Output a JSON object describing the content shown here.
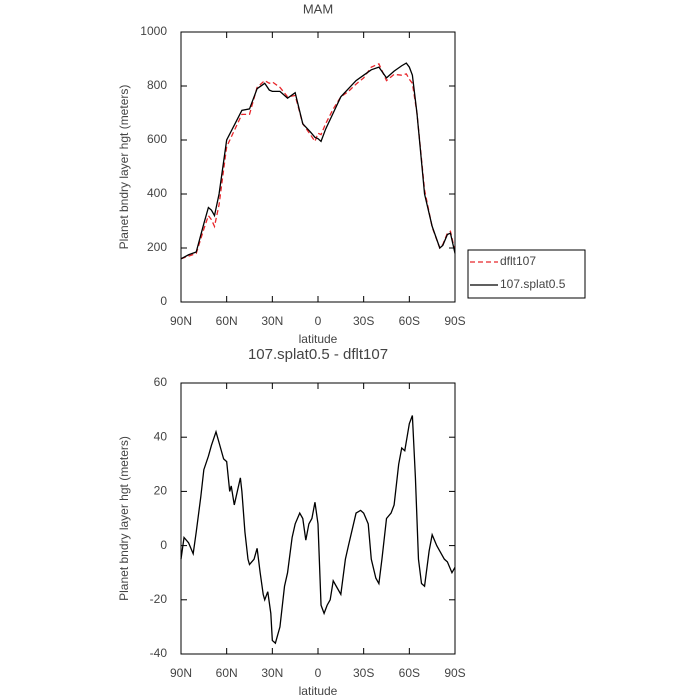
{
  "chart_data": [
    {
      "type": "line",
      "title": "MAM",
      "x_label": "latitude",
      "y_label": "Planet bndry layer hgt (meters)",
      "x": [
        90,
        85,
        80,
        75,
        72,
        70,
        68,
        65,
        62,
        60,
        55,
        50,
        45,
        40,
        35,
        32,
        30,
        25,
        20,
        15,
        10,
        5,
        2,
        0,
        -2,
        -5,
        -10,
        -15,
        -20,
        -25,
        -30,
        -35,
        -40,
        -45,
        -50,
        -55,
        -58,
        -60,
        -62,
        -65,
        -70,
        -75,
        -80,
        -82,
        -85,
        -87,
        -90
      ],
      "series": [
        {
          "name": "dflt107",
          "color": "#e8262b",
          "linestyle": "dashed",
          "values": [
            160,
            170,
            180,
            270,
            320,
            305,
            280,
            360,
            490,
            575,
            635,
            695,
            695,
            795,
            820,
            810,
            815,
            795,
            760,
            765,
            660,
            620,
            595,
            625,
            620,
            660,
            715,
            760,
            780,
            807,
            830,
            870,
            882,
            820,
            843,
            840,
            845,
            825,
            810,
            700,
            415,
            277,
            200,
            213,
            255,
            262,
            188
          ]
        },
        {
          "name": "107.splat0.5",
          "color": "#000000",
          "linestyle": "solid",
          "values": [
            160,
            175,
            185,
            290,
            350,
            340,
            320,
            400,
            520,
            600,
            655,
            710,
            715,
            790,
            810,
            785,
            780,
            780,
            755,
            775,
            660,
            630,
            610,
            605,
            595,
            640,
            700,
            760,
            790,
            820,
            840,
            860,
            870,
            830,
            855,
            875,
            885,
            870,
            840,
            700,
            400,
            280,
            200,
            210,
            250,
            255,
            180
          ]
        }
      ],
      "xlim": [
        90,
        -90
      ],
      "xticks": [
        {
          "value": 90,
          "label": "90N"
        },
        {
          "value": 60,
          "label": "60N"
        },
        {
          "value": 30,
          "label": "30N"
        },
        0,
        {
          "value": -30,
          "label": "30S"
        },
        {
          "value": -60,
          "label": "60S"
        },
        {
          "value": -90,
          "label": "90S"
        }
      ],
      "ylim": [
        0,
        1000
      ],
      "yticks": [
        0,
        200,
        400,
        600,
        800,
        1000
      ],
      "legend": "right"
    },
    {
      "type": "line",
      "title": "107.splat0.5 - dflt107",
      "x_label": "latitude",
      "y_label": "Planet bndry layer hgt (meters)",
      "x": [
        90,
        88,
        85,
        82,
        80,
        77,
        75,
        72,
        70,
        67,
        65,
        62,
        60,
        58,
        57,
        55,
        53,
        51,
        50,
        48,
        46,
        45,
        42,
        40,
        38,
        36,
        35,
        33,
        31,
        30,
        28,
        25,
        22,
        20,
        17,
        15,
        12,
        10,
        8,
        6,
        4,
        2,
        0,
        -2,
        -4,
        -6,
        -8,
        -10,
        -12,
        -15,
        -18,
        -20,
        -25,
        -28,
        -30,
        -33,
        -35,
        -38,
        -40,
        -42,
        -45,
        -48,
        -50,
        -53,
        -55,
        -57,
        -60,
        -62,
        -64,
        -66,
        -68,
        -70,
        -73,
        -75,
        -78,
        -80,
        -83,
        -85,
        -88,
        -90
      ],
      "series": [
        {
          "color": "#000000",
          "linestyle": "solid",
          "values": [
            -5,
            3,
            1,
            -3,
            5,
            18,
            28,
            33,
            37,
            42,
            38,
            32,
            31,
            20,
            22,
            15,
            20,
            25,
            20,
            5,
            -5,
            -7,
            -5,
            -1,
            -10,
            -18,
            -20,
            -17,
            -25,
            -35,
            -36,
            -30,
            -15,
            -10,
            3,
            8,
            12,
            10,
            2,
            8,
            10,
            16,
            8,
            -22,
            -25,
            -22,
            -20,
            -13,
            -15,
            -18,
            -5,
            0,
            12,
            13,
            12,
            8,
            -5,
            -12,
            -14,
            -5,
            10,
            12,
            15,
            30,
            36,
            35,
            45,
            48,
            25,
            -5,
            -14,
            -15,
            -2,
            4,
            0,
            -2,
            -5,
            -6,
            -10,
            -8
          ]
        }
      ],
      "xlim": [
        90,
        -90
      ],
      "xticks": [
        {
          "value": 90,
          "label": "90N"
        },
        {
          "value": 60,
          "label": "60N"
        },
        {
          "value": 30,
          "label": "30N"
        },
        0,
        {
          "value": -30,
          "label": "30S"
        },
        {
          "value": -60,
          "label": "60S"
        },
        {
          "value": -90,
          "label": "90S"
        }
      ],
      "ylim": [
        -40,
        60
      ],
      "yticks": [
        -40,
        -20,
        0,
        20,
        40,
        60
      ]
    }
  ]
}
